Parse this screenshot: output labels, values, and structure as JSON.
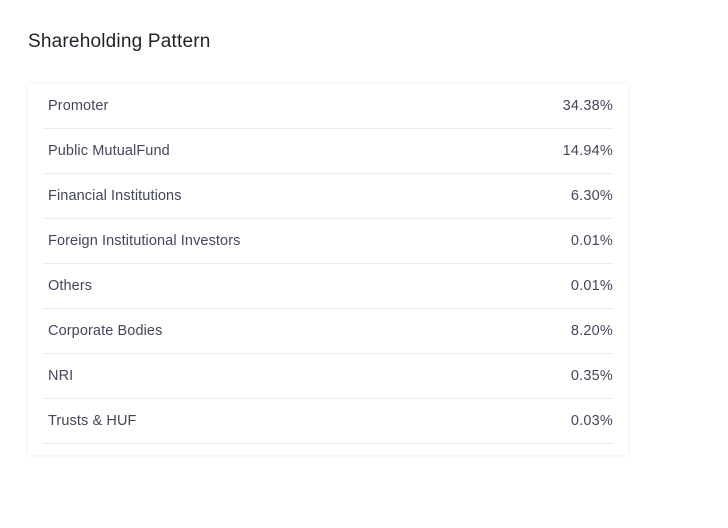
{
  "section": {
    "title": "Shareholding Pattern"
  },
  "rows": [
    {
      "label": "Promoter",
      "value": "34.38%"
    },
    {
      "label": "Public MutualFund",
      "value": "14.94%"
    },
    {
      "label": "Financial Institutions",
      "value": "6.30%"
    },
    {
      "label": "Foreign Institutional Investors",
      "value": "0.01%"
    },
    {
      "label": "Others",
      "value": "0.01%"
    },
    {
      "label": "Corporate Bodies",
      "value": "8.20%"
    },
    {
      "label": "NRI",
      "value": "0.35%"
    },
    {
      "label": "Trusts & HUF",
      "value": "0.03%"
    }
  ]
}
